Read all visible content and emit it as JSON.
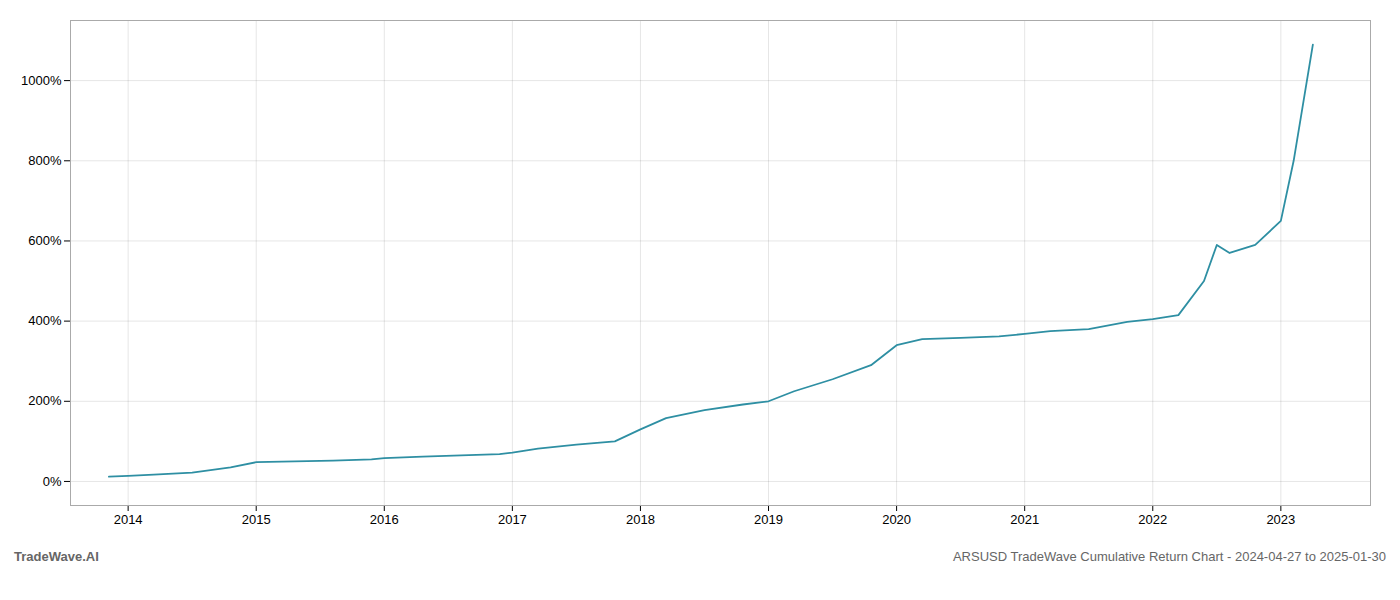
{
  "chart_data": {
    "type": "line",
    "title": "ARSUSD TradeWave Cumulative Return Chart - 2024-04-27 to 2025-01-30",
    "annotations": [
      "TradeWave.AI"
    ],
    "color": "#2e8fa3",
    "grid": true,
    "xlim": [
      2013.55,
      2023.7
    ],
    "xticks": [
      2014,
      2015,
      2016,
      2017,
      2018,
      2019,
      2020,
      2021,
      2022,
      2023
    ],
    "ylim": [
      -60,
      1150
    ],
    "yticks": [
      {
        "value": 0,
        "label": "0%"
      },
      {
        "value": 200,
        "label": "200%"
      },
      {
        "value": 400,
        "label": "400%"
      },
      {
        "value": 600,
        "label": "600%"
      },
      {
        "value": 800,
        "label": "800%"
      },
      {
        "value": 1000,
        "label": "1000%"
      }
    ],
    "x": [
      2013.85,
      2014.0,
      2014.2,
      2014.5,
      2014.8,
      2015.0,
      2015.3,
      2015.6,
      2015.9,
      2016.0,
      2016.3,
      2016.6,
      2016.9,
      2017.0,
      2017.2,
      2017.5,
      2017.8,
      2018.0,
      2018.2,
      2018.5,
      2018.8,
      2019.0,
      2019.2,
      2019.5,
      2019.8,
      2020.0,
      2020.2,
      2020.5,
      2020.8,
      2021.0,
      2021.2,
      2021.5,
      2021.8,
      2022.0,
      2022.2,
      2022.4,
      2022.5,
      2022.6,
      2022.8,
      2023.0,
      2023.1,
      2023.25
    ],
    "values": [
      12,
      14,
      17,
      22,
      35,
      48,
      50,
      52,
      55,
      58,
      62,
      65,
      68,
      72,
      82,
      92,
      100,
      130,
      158,
      178,
      192,
      200,
      225,
      255,
      290,
      340,
      355,
      358,
      362,
      368,
      375,
      380,
      398,
      405,
      415,
      500,
      590,
      570,
      590,
      650,
      800,
      1090
    ]
  }
}
